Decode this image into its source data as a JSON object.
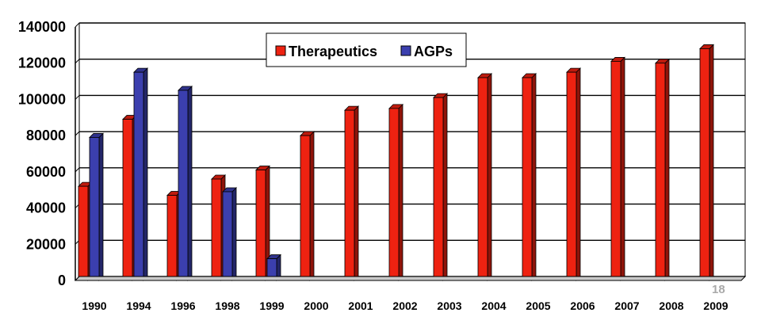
{
  "page_number": "18",
  "colors": {
    "therapeutics": "#ee2211",
    "agps": "#3b3fae",
    "grid": "#000000"
  },
  "chart_data": {
    "type": "bar",
    "categories": [
      "1990",
      "1994",
      "1996",
      "1998",
      "1999",
      "2000",
      "2001",
      "2002",
      "2003",
      "2004",
      "2005",
      "2006",
      "2007",
      "2008",
      "2009"
    ],
    "series": [
      {
        "name": "Therapeutics",
        "values": [
          52000,
          89000,
          47000,
          56000,
          61000,
          80000,
          94000,
          95000,
          101000,
          112000,
          112000,
          115000,
          121000,
          120000,
          128000
        ]
      },
      {
        "name": "AGPs",
        "values": [
          79000,
          115000,
          105000,
          49000,
          12000,
          0,
          0,
          0,
          0,
          0,
          0,
          0,
          0,
          0,
          null
        ]
      }
    ],
    "ylim": [
      0,
      140000
    ],
    "yticks": [
      0,
      20000,
      40000,
      60000,
      80000,
      100000,
      120000,
      140000
    ],
    "grid": true,
    "legend_position": "top-center"
  }
}
